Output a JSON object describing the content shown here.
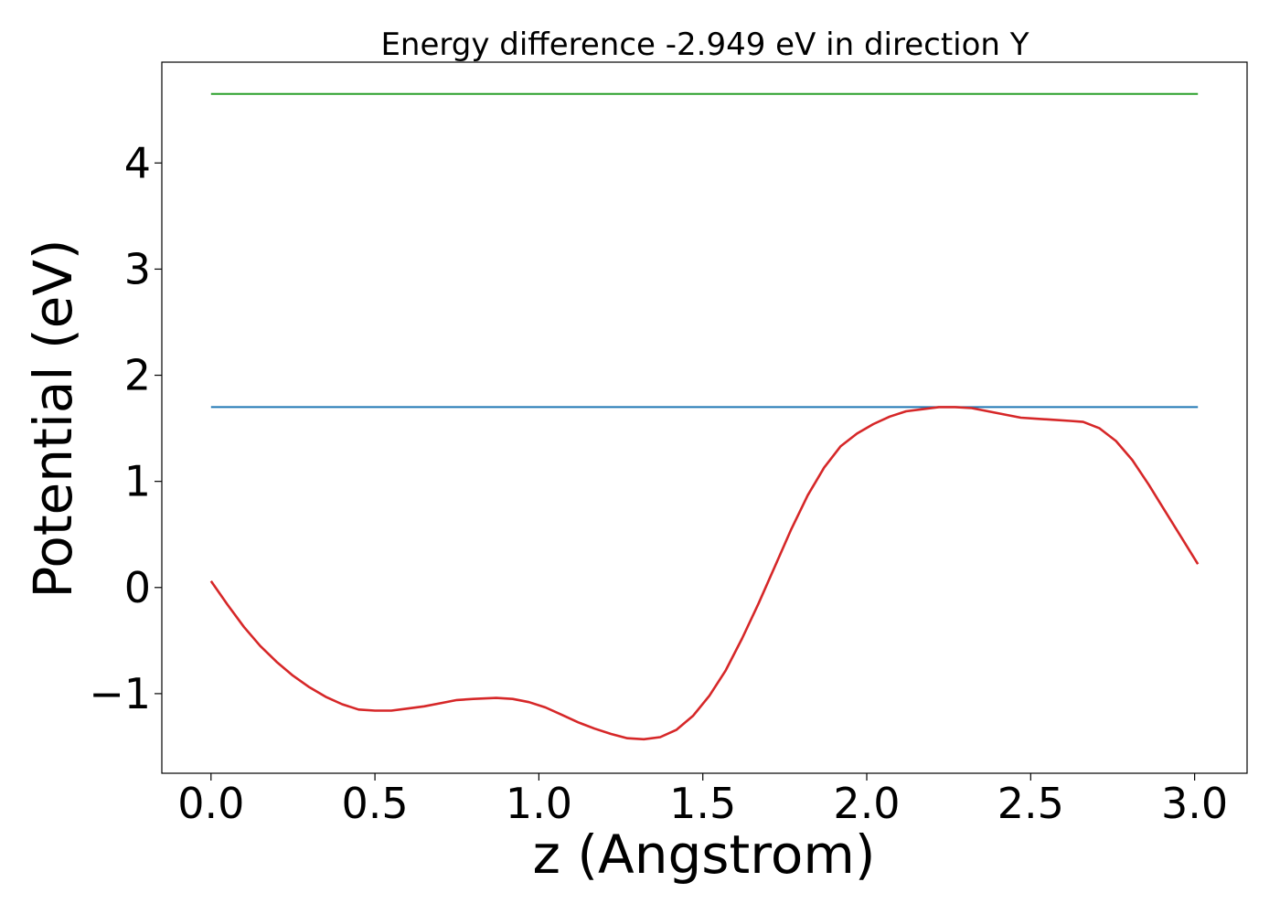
{
  "chart_data": {
    "type": "line",
    "title": "Energy difference -2.949 eV in direction Y",
    "xlabel": "z (Angstrom)",
    "ylabel": "Potential (eV)",
    "xlim": [
      -0.15,
      3.16
    ],
    "ylim": [
      -1.75,
      4.95
    ],
    "x_ticks": [
      0.0,
      0.5,
      1.0,
      1.5,
      2.0,
      2.5,
      3.0
    ],
    "x_tick_labels": [
      "0.0",
      "0.5",
      "1.0",
      "1.5",
      "2.0",
      "2.5",
      "3.0"
    ],
    "y_ticks": [
      -1,
      0,
      1,
      2,
      3,
      4
    ],
    "y_tick_labels": [
      "−1",
      "0",
      "1",
      "2",
      "3",
      "4"
    ],
    "grid": false,
    "series": [
      {
        "color": "#2ca02c",
        "x": [
          0.0,
          3.01
        ],
        "y": [
          4.65,
          4.65
        ]
      },
      {
        "color": "#1f77b4",
        "x": [
          0.0,
          3.01
        ],
        "y": [
          1.7,
          1.7
        ]
      },
      {
        "color": "#d62728",
        "x": [
          0.0,
          0.05,
          0.1,
          0.15,
          0.2,
          0.25,
          0.3,
          0.35,
          0.4,
          0.45,
          0.5,
          0.55,
          0.6,
          0.65,
          0.7,
          0.75,
          0.8,
          0.87,
          0.92,
          0.97,
          1.02,
          1.07,
          1.12,
          1.17,
          1.22,
          1.27,
          1.32,
          1.37,
          1.42,
          1.47,
          1.52,
          1.57,
          1.62,
          1.67,
          1.72,
          1.77,
          1.82,
          1.87,
          1.92,
          1.97,
          2.02,
          2.07,
          2.12,
          2.17,
          2.22,
          2.27,
          2.32,
          2.37,
          2.42,
          2.47,
          2.52,
          2.57,
          2.62,
          2.66,
          2.71,
          2.76,
          2.81,
          2.86,
          2.91,
          2.96,
          3.01
        ],
        "y": [
          0.06,
          -0.16,
          -0.37,
          -0.55,
          -0.7,
          -0.83,
          -0.94,
          -1.03,
          -1.1,
          -1.15,
          -1.16,
          -1.16,
          -1.14,
          -1.12,
          -1.09,
          -1.06,
          -1.05,
          -1.04,
          -1.05,
          -1.08,
          -1.13,
          -1.2,
          -1.27,
          -1.33,
          -1.38,
          -1.42,
          -1.43,
          -1.41,
          -1.34,
          -1.21,
          -1.02,
          -0.78,
          -0.48,
          -0.15,
          0.2,
          0.55,
          0.87,
          1.13,
          1.33,
          1.45,
          1.54,
          1.61,
          1.66,
          1.68,
          1.7,
          1.7,
          1.69,
          1.66,
          1.63,
          1.6,
          1.59,
          1.58,
          1.57,
          1.56,
          1.5,
          1.38,
          1.2,
          0.97,
          0.72,
          0.47,
          0.22
        ]
      }
    ]
  }
}
